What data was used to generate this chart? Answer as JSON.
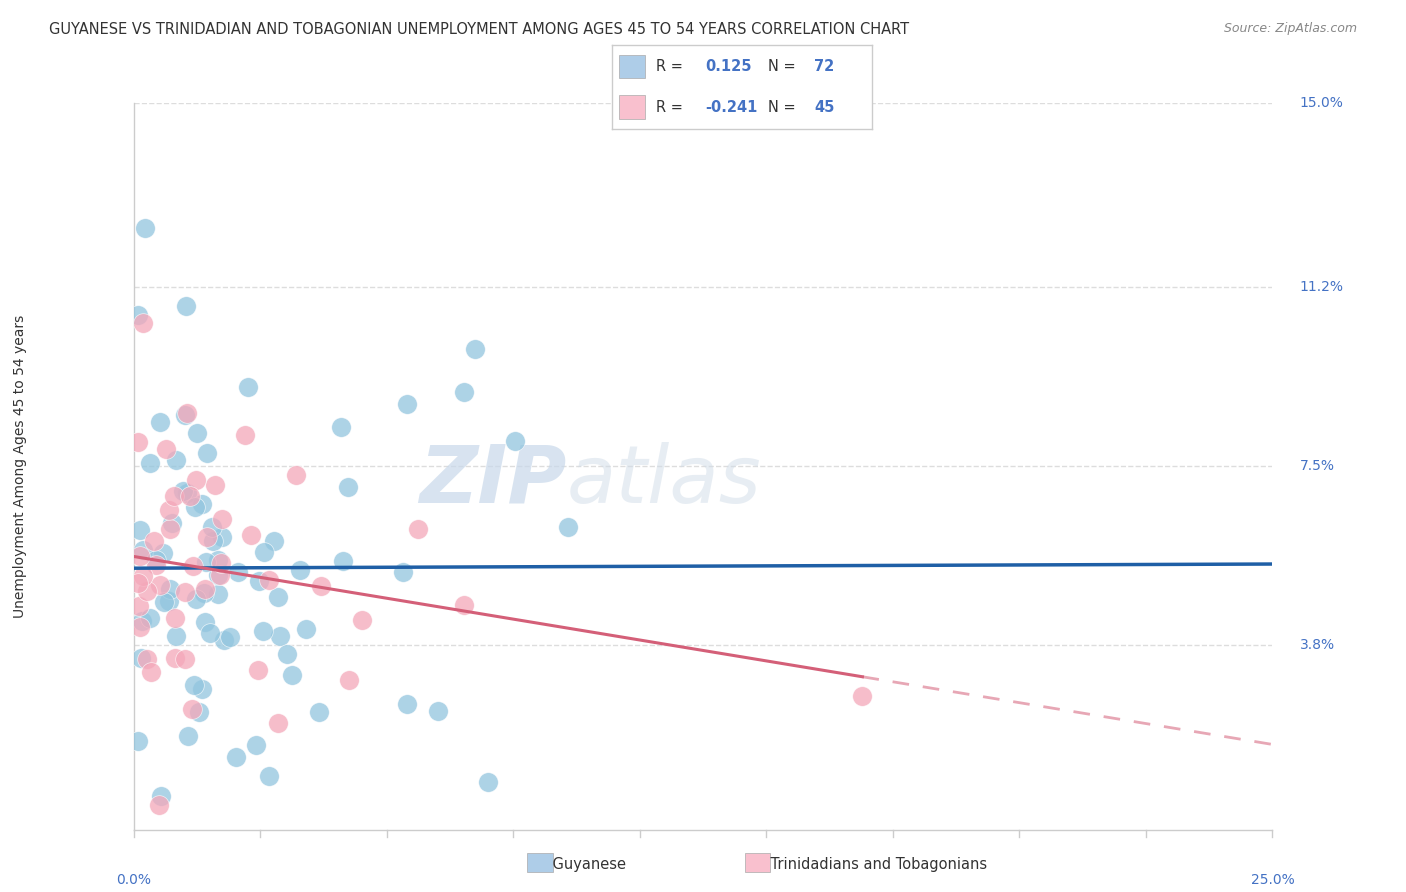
{
  "title": "GUYANESE VS TRINIDADIAN AND TOBAGONIAN UNEMPLOYMENT AMONG AGES 45 TO 54 YEARS CORRELATION CHART",
  "source": "Source: ZipAtlas.com",
  "ylabel": "Unemployment Among Ages 45 to 54 years",
  "xlim": [
    0.0,
    25.0
  ],
  "ylim": [
    0.0,
    15.0
  ],
  "watermark_zip": "ZIP",
  "watermark_atlas": "atlas",
  "series1_label": "Guyanese",
  "series2_label": "Trinidadians and Tobagonians",
  "series1_color": "#92c5de",
  "series2_color": "#f4a7b9",
  "series1_face": "#aecde8",
  "series2_face": "#f9c0ce",
  "series1_edge": "#6aaed6",
  "series2_edge": "#e8768a",
  "trend_line1_color": "#1f5fa6",
  "trend_line2_color": "#d45f78",
  "legend_box_color1": "#aecde8",
  "legend_box_color2": "#f9c0ce",
  "r1": 0.125,
  "n1": 72,
  "r2": -0.241,
  "n2": 45,
  "title_fontsize": 10.5,
  "source_fontsize": 9,
  "label_fontsize": 10,
  "background_color": "#ffffff",
  "grid_color": "#dddddd",
  "axis_color": "#cccccc",
  "blue_label_color": "#4472c4",
  "text_color": "#333333",
  "ytick_vals": [
    3.8,
    7.5,
    11.2,
    15.0
  ],
  "ytick_labels": [
    "3.8%",
    "7.5%",
    "11.2%",
    "15.0%"
  ]
}
